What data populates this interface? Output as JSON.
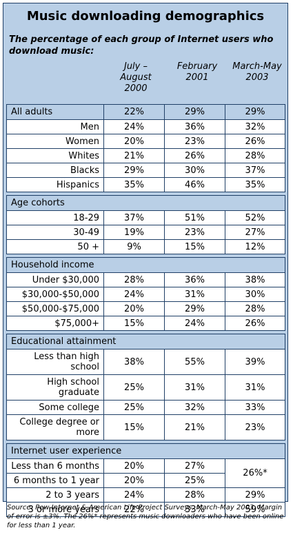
{
  "title": "Music downloading demographics",
  "subtitle": "The percentage of each group of Internet users who download music:",
  "columns": [
    "July – August 2000",
    "February 2001",
    "March-May 2003"
  ],
  "rows": [
    {
      "label": "All adults",
      "v": [
        "22%",
        "29%",
        "29%"
      ],
      "section": true
    },
    {
      "label": "Men",
      "v": [
        "24%",
        "36%",
        "32%"
      ]
    },
    {
      "label": "Women",
      "v": [
        "20%",
        "23%",
        "26%"
      ]
    },
    {
      "label": "Whites",
      "v": [
        "21%",
        "26%",
        "28%"
      ]
    },
    {
      "label": "Blacks",
      "v": [
        "29%",
        "30%",
        "37%"
      ]
    },
    {
      "label": "Hispanics",
      "v": [
        "35%",
        "46%",
        "35%"
      ]
    },
    {
      "label": "Age cohorts",
      "header": true
    },
    {
      "label": "18-29",
      "v": [
        "37%",
        "51%",
        "52%"
      ]
    },
    {
      "label": "30-49",
      "v": [
        "19%",
        "23%",
        "27%"
      ]
    },
    {
      "label": "50 +",
      "v": [
        "9%",
        "15%",
        "12%"
      ]
    },
    {
      "label": "Household income",
      "header": true
    },
    {
      "label": "Under $30,000",
      "v": [
        "28%",
        "36%",
        "38%"
      ]
    },
    {
      "label": "$30,000-$50,000",
      "v": [
        "24%",
        "31%",
        "30%"
      ]
    },
    {
      "label": "$50,000-$75,000",
      "v": [
        "20%",
        "29%",
        "28%"
      ]
    },
    {
      "label": "$75,000+",
      "v": [
        "15%",
        "24%",
        "26%"
      ]
    },
    {
      "label": "Educational attainment",
      "header": true
    },
    {
      "label": "Less than high school",
      "v": [
        "38%",
        "55%",
        "39%"
      ],
      "tall": true
    },
    {
      "label": "High school graduate",
      "v": [
        "25%",
        "31%",
        "31%"
      ],
      "tall": true
    },
    {
      "label": "Some college",
      "v": [
        "25%",
        "32%",
        "33%"
      ]
    },
    {
      "label": "College degree or more",
      "v": [
        "15%",
        "21%",
        "23%"
      ],
      "tall": true
    },
    {
      "label": "Internet user experience",
      "header": true
    },
    {
      "label": "Less than 6 months",
      "v": [
        "20%",
        "27%",
        "26%*"
      ],
      "merge": true
    },
    {
      "label": "6 months to 1 year",
      "v": [
        "20%",
        "25%",
        null
      ]
    },
    {
      "label": "2 to 3 years",
      "v": [
        "24%",
        "28%",
        "29%"
      ]
    },
    {
      "label": "3 or more years",
      "v": [
        "22%",
        "33%",
        "59%"
      ]
    }
  ],
  "note": "Source: Pew Internet & American Life Project Surveys, March-May 2003.  Margin of error is ±3%. The 26%* represents music downloaders who have been online for less than 1 year."
}
